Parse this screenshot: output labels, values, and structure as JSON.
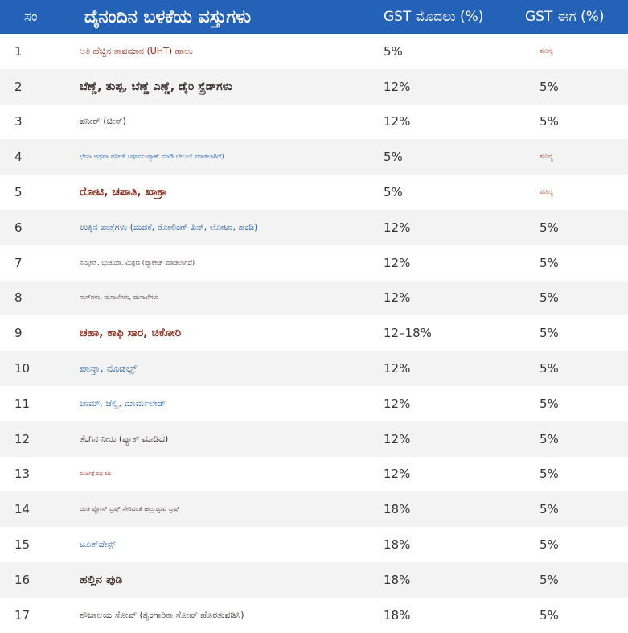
{
  "table": {
    "header": [
      "ಸಂ",
      "ದೈನಂದಿನ ಬಳಕೆಯ ವಸ್ತುಗಳು",
      "GST ಮೊದಲು (%)",
      "GST ಈಗ (%)"
    ],
    "rows": [
      [
        "1",
        "ಅತಿ ಹೆಚ್ಚಿನ ತಾಪಮಾನ (UHT) ಹಾಲು",
        "5%",
        "ಶೂನ್ಯ"
      ],
      [
        "2",
        "ಬೆಣ್ಣೆ, ತುಪ್ಪ, ಬೆಣ್ಣೆ ಎಣ್ಣೆ, ಡೈರಿ ಸ್ಪ್ರೆಡ್‌ಗಳು",
        "12%",
        "5%"
      ],
      [
        "3",
        "ಪನೀರ್ (ಚೀಸ್)",
        "12%",
        "5%"
      ],
      [
        "4",
        "ಛೇನಾ ಅಥವಾ ಪನೀರ್ (ಪೂರ್ವ-ಪ್ಯಾಕ್ ಮಾಡಿ ಲೇಬಲ್ ಮಾಡಲಾಗಿದೆ)",
        "5%",
        "ಶೂನ್ಯ"
      ],
      [
        "5",
        "ರೋಟಿ, ಚಪಾತಿ, ಖಾಕ್ರಾ",
        "5%",
        "ಶೂನ್ಯ"
      ],
      [
        "6",
        "ಉಕ್ಕಿನ ಪಾತ್ರೆಗಳು (ಮಡಕೆ, ರೋಲಿಂಗ್ ಪಿನ್, ಲೋಟಾ, ಹಂಡಿ)",
        "12%",
        "5%"
      ],
      [
        "7",
        "ನಮ್ಕೀನ್, ಭುಜಿಯಾ, ಮಿಶ್ರಣ (ಪ್ಯಾಕೇಜ್ ಮಾಡಲಾಗಿದೆ)",
        "12%",
        "5%"
      ],
      [
        "8",
        "ಸಾಸ್‌ಗಳು, ಮಸಾಲೆಗಳು, ಮಸಾಲೆಗಳು",
        "12%",
        "5%"
      ],
      [
        "9",
        "ಚಹಾ, ಕಾಫಿ ಸಾರ, ಚಿಕೋರಿ",
        "12–18%",
        "5%"
      ],
      [
        "10",
        "ಪಾಸ್ತಾ, ನೂಡಲ್ಸ್",
        "12%",
        "5%"
      ],
      [
        "11",
        "ಜಾಮ್, ಜೆಲ್ಲಿ, ಮಾರ್ಮಲೇಡ್",
        "12%",
        "5%"
      ],
      [
        "12",
        "ತೆಂಗಿನ ನೀರು (ಪ್ಯಾಕ್ ಮಾಡಿದ)",
        "12%",
        "5%"
      ],
      [
        "13",
        "ಮಂಜುಗಡ್ಡೆ ಮತ್ತು ಹಿಮ",
        "12%",
        "5%"
      ],
      [
        "14",
        "ದಂತ ಫ್ಲೋಸ್ ಬ್ರಷ್ ಸೇರಿದಂತೆ ಹಲ್ಲುಜ್ಜುವ ಬ್ರಷ್",
        "18%",
        "5%"
      ],
      [
        "15",
        "ಟೂತ್‌ಪೇಸ್ಟ್",
        "18%",
        "5%"
      ],
      [
        "16",
        "ಹಲ್ಲಿನ ಪುಡಿ",
        "18%",
        "5%"
      ],
      [
        "17",
        "ಶೌಚಾಲಯ ಸೋಪ್ (ಶೃಂಗಾರಿಕಾ ಸೋಪ್ ಹೊರತುಪಡಿಸಿ)",
        "18%",
        "5%"
      ]
    ]
  }
}
